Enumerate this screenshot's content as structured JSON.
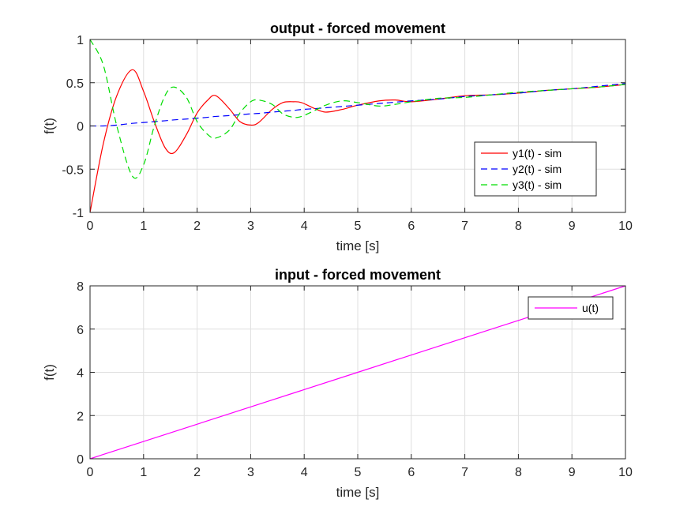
{
  "chart_data": [
    {
      "type": "line",
      "title": "output - forced movement",
      "xlabel": "time [s]",
      "ylabel": "f(t)",
      "xlim": [
        0,
        10
      ],
      "ylim": [
        -1,
        1
      ],
      "xticks": [
        0,
        1,
        2,
        3,
        4,
        5,
        6,
        7,
        8,
        9,
        10
      ],
      "yticks": [
        -1,
        -0.5,
        0,
        0.5,
        1
      ],
      "ytick_labels": [
        "-1",
        "-0.5",
        "0",
        "0.5",
        "1"
      ],
      "grid": true,
      "legend_position": "bottom-right",
      "x": [
        0,
        0.25,
        0.5,
        0.79,
        1.0,
        1.2,
        1.4,
        1.57,
        1.8,
        2.0,
        2.2,
        2.35,
        2.6,
        2.8,
        3.0,
        3.15,
        3.4,
        3.6,
        3.8,
        3.95,
        4.2,
        4.4,
        4.7,
        5.0,
        5.4,
        5.7,
        6.0,
        6.5,
        7.0,
        7.5,
        8.0,
        8.5,
        9.0,
        9.5,
        10.0
      ],
      "series": [
        {
          "name": "y1(t) - sim",
          "color": "#ff0000",
          "dash": "solid",
          "values": [
            -1.0,
            -0.2,
            0.35,
            0.65,
            0.4,
            0.05,
            -0.25,
            -0.31,
            -0.1,
            0.15,
            0.3,
            0.35,
            0.2,
            0.05,
            0.01,
            0.04,
            0.19,
            0.27,
            0.28,
            0.27,
            0.2,
            0.16,
            0.19,
            0.24,
            0.29,
            0.3,
            0.28,
            0.31,
            0.35,
            0.36,
            0.38,
            0.41,
            0.43,
            0.45,
            0.48
          ]
        },
        {
          "name": "y2(t) - sim",
          "color": "#0000ff",
          "dash": "dashed",
          "values": [
            0.0,
            0.0,
            0.01,
            0.03,
            0.04,
            0.05,
            0.06,
            0.07,
            0.08,
            0.09,
            0.1,
            0.11,
            0.12,
            0.13,
            0.14,
            0.145,
            0.16,
            0.17,
            0.18,
            0.19,
            0.2,
            0.21,
            0.225,
            0.24,
            0.26,
            0.275,
            0.29,
            0.31,
            0.34,
            0.36,
            0.38,
            0.41,
            0.43,
            0.46,
            0.49
          ]
        },
        {
          "name": "y3(t) - sim",
          "color": "#00dd00",
          "dash": "dashed",
          "values": [
            1.0,
            0.7,
            0.0,
            -0.58,
            -0.45,
            0.0,
            0.35,
            0.45,
            0.33,
            0.05,
            -0.1,
            -0.14,
            -0.05,
            0.15,
            0.28,
            0.3,
            0.25,
            0.14,
            0.1,
            0.11,
            0.18,
            0.24,
            0.29,
            0.27,
            0.23,
            0.25,
            0.28,
            0.32,
            0.33,
            0.36,
            0.39,
            0.41,
            0.43,
            0.45,
            0.48
          ]
        }
      ]
    },
    {
      "type": "line",
      "title": "input - forced movement",
      "xlabel": "time [s]",
      "ylabel": "f(t)",
      "xlim": [
        0,
        10
      ],
      "ylim": [
        0,
        8
      ],
      "xticks": [
        0,
        1,
        2,
        3,
        4,
        5,
        6,
        7,
        8,
        9,
        10
      ],
      "yticks": [
        0,
        2,
        4,
        6,
        8
      ],
      "ytick_labels": [
        "0",
        "2",
        "4",
        "6",
        "8"
      ],
      "grid": true,
      "legend_position": "top-right",
      "x": [
        0,
        10
      ],
      "series": [
        {
          "name": "u(t)",
          "color": "#ff00ff",
          "dash": "solid",
          "values": [
            0,
            8
          ]
        }
      ]
    }
  ]
}
